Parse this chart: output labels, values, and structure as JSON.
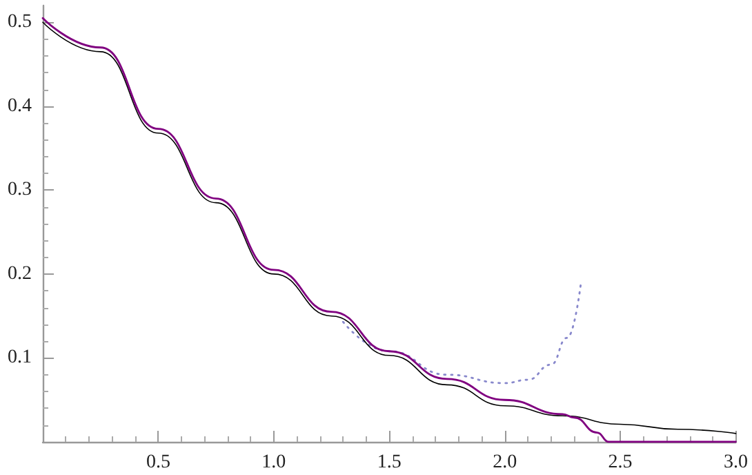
{
  "chart_data": {
    "type": "line",
    "xlim": [
      0,
      3.0
    ],
    "ylim": [
      0,
      0.52
    ],
    "xticks": [
      0.5,
      {
        "value": 1,
        "label": "1.0"
      },
      1.5,
      {
        "value": 2,
        "label": "2.0"
      },
      2.5,
      {
        "value": 3,
        "label": "3.0"
      }
    ],
    "yticks": [
      0.1,
      0.2,
      0.3,
      0.4,
      0.5
    ],
    "grid": false,
    "marker": "none",
    "series": [
      {
        "color": "#000000",
        "line_style": "solid",
        "x": [
          0,
          0.25,
          0.5,
          0.75,
          1.0,
          1.25,
          1.5,
          1.75,
          2.0,
          2.25,
          2.5,
          2.75,
          3.0
        ],
        "values": [
          0.5,
          0.465,
          0.368,
          0.285,
          0.2,
          0.15,
          0.103,
          0.068,
          0.043,
          0.031,
          0.021,
          0.015,
          0.01
        ]
      },
      {
        "color": "#8888cc",
        "line_style": "dotted",
        "x": [
          1.3,
          1.5,
          1.75,
          2.0,
          2.1,
          2.2,
          2.27,
          2.33
        ],
        "values": [
          0.143,
          0.108,
          0.08,
          0.07,
          0.074,
          0.092,
          0.124,
          0.19
        ]
      },
      {
        "color": "#800080",
        "line_style": "solid",
        "x": [
          0,
          0.25,
          0.5,
          0.75,
          1.0,
          1.25,
          1.5,
          1.75,
          2.0,
          2.25,
          2.3,
          2.4,
          2.45,
          2.7,
          3.0
        ],
        "values": [
          0.505,
          0.47,
          0.373,
          0.29,
          0.205,
          0.155,
          0.108,
          0.075,
          0.05,
          0.033,
          0.029,
          0.011,
          0,
          0,
          0
        ]
      }
    ]
  }
}
